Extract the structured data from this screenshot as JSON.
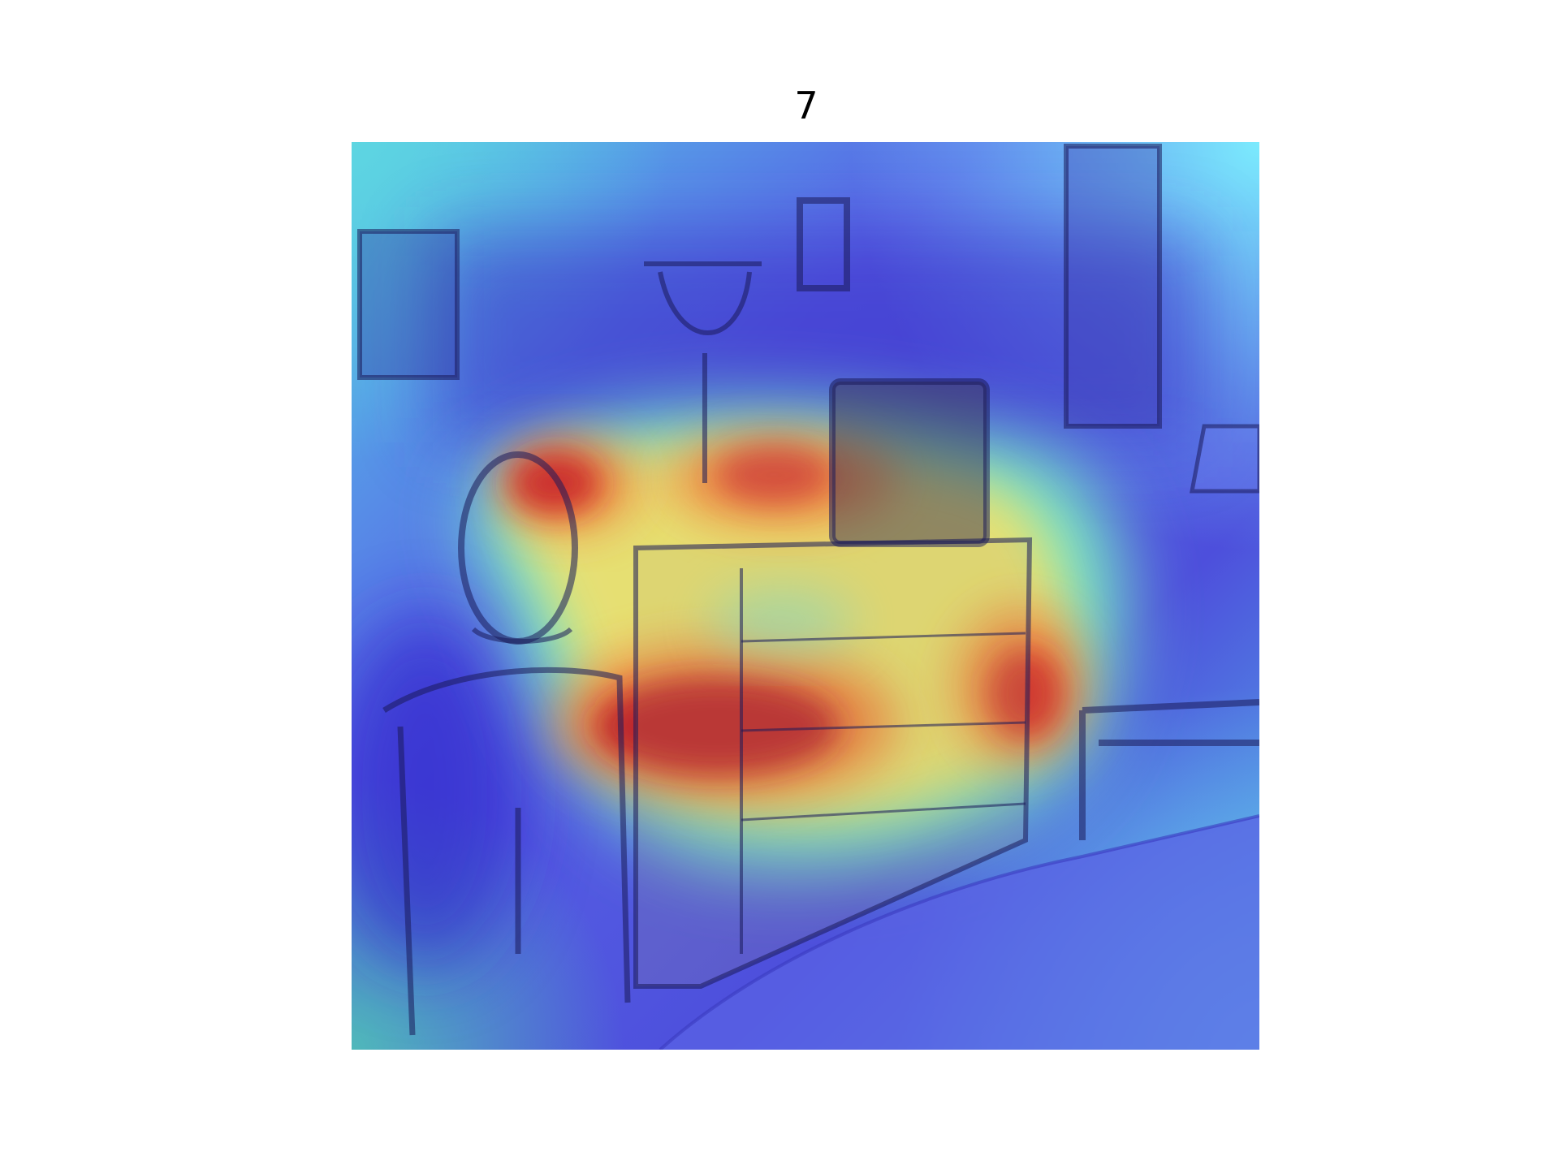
{
  "figure": {
    "title": "7"
  },
  "image": {
    "description_icon": "heatmap-overlay-bedroom",
    "colormap": [
      "#2b1fd6",
      "#5a6cf0",
      "#52c6ff",
      "#7dffc0",
      "#f2e070",
      "#f07a3a",
      "#c8242a"
    ]
  }
}
